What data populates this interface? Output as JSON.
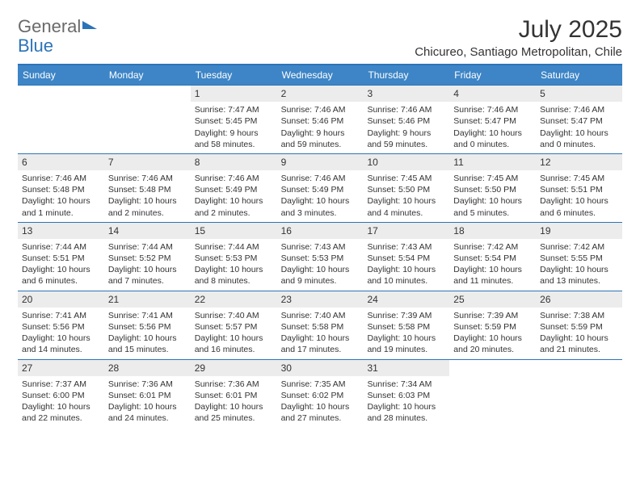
{
  "brand": {
    "part1": "General",
    "part2": "Blue"
  },
  "title": "July 2025",
  "location": "Chicureo, Santiago Metropolitan, Chile",
  "colors": {
    "header_bg": "#3d85c6",
    "rule": "#2c74b8",
    "daynum_bg": "#ececec",
    "text": "#333333"
  },
  "weekdays": [
    "Sunday",
    "Monday",
    "Tuesday",
    "Wednesday",
    "Thursday",
    "Friday",
    "Saturday"
  ],
  "weeks": [
    [
      null,
      null,
      {
        "n": "1",
        "sr": "Sunrise: 7:47 AM",
        "ss": "Sunset: 5:45 PM",
        "d1": "Daylight: 9 hours",
        "d2": "and 58 minutes."
      },
      {
        "n": "2",
        "sr": "Sunrise: 7:46 AM",
        "ss": "Sunset: 5:46 PM",
        "d1": "Daylight: 9 hours",
        "d2": "and 59 minutes."
      },
      {
        "n": "3",
        "sr": "Sunrise: 7:46 AM",
        "ss": "Sunset: 5:46 PM",
        "d1": "Daylight: 9 hours",
        "d2": "and 59 minutes."
      },
      {
        "n": "4",
        "sr": "Sunrise: 7:46 AM",
        "ss": "Sunset: 5:47 PM",
        "d1": "Daylight: 10 hours",
        "d2": "and 0 minutes."
      },
      {
        "n": "5",
        "sr": "Sunrise: 7:46 AM",
        "ss": "Sunset: 5:47 PM",
        "d1": "Daylight: 10 hours",
        "d2": "and 0 minutes."
      }
    ],
    [
      {
        "n": "6",
        "sr": "Sunrise: 7:46 AM",
        "ss": "Sunset: 5:48 PM",
        "d1": "Daylight: 10 hours",
        "d2": "and 1 minute."
      },
      {
        "n": "7",
        "sr": "Sunrise: 7:46 AM",
        "ss": "Sunset: 5:48 PM",
        "d1": "Daylight: 10 hours",
        "d2": "and 2 minutes."
      },
      {
        "n": "8",
        "sr": "Sunrise: 7:46 AM",
        "ss": "Sunset: 5:49 PM",
        "d1": "Daylight: 10 hours",
        "d2": "and 2 minutes."
      },
      {
        "n": "9",
        "sr": "Sunrise: 7:46 AM",
        "ss": "Sunset: 5:49 PM",
        "d1": "Daylight: 10 hours",
        "d2": "and 3 minutes."
      },
      {
        "n": "10",
        "sr": "Sunrise: 7:45 AM",
        "ss": "Sunset: 5:50 PM",
        "d1": "Daylight: 10 hours",
        "d2": "and 4 minutes."
      },
      {
        "n": "11",
        "sr": "Sunrise: 7:45 AM",
        "ss": "Sunset: 5:50 PM",
        "d1": "Daylight: 10 hours",
        "d2": "and 5 minutes."
      },
      {
        "n": "12",
        "sr": "Sunrise: 7:45 AM",
        "ss": "Sunset: 5:51 PM",
        "d1": "Daylight: 10 hours",
        "d2": "and 6 minutes."
      }
    ],
    [
      {
        "n": "13",
        "sr": "Sunrise: 7:44 AM",
        "ss": "Sunset: 5:51 PM",
        "d1": "Daylight: 10 hours",
        "d2": "and 6 minutes."
      },
      {
        "n": "14",
        "sr": "Sunrise: 7:44 AM",
        "ss": "Sunset: 5:52 PM",
        "d1": "Daylight: 10 hours",
        "d2": "and 7 minutes."
      },
      {
        "n": "15",
        "sr": "Sunrise: 7:44 AM",
        "ss": "Sunset: 5:53 PM",
        "d1": "Daylight: 10 hours",
        "d2": "and 8 minutes."
      },
      {
        "n": "16",
        "sr": "Sunrise: 7:43 AM",
        "ss": "Sunset: 5:53 PM",
        "d1": "Daylight: 10 hours",
        "d2": "and 9 minutes."
      },
      {
        "n": "17",
        "sr": "Sunrise: 7:43 AM",
        "ss": "Sunset: 5:54 PM",
        "d1": "Daylight: 10 hours",
        "d2": "and 10 minutes."
      },
      {
        "n": "18",
        "sr": "Sunrise: 7:42 AM",
        "ss": "Sunset: 5:54 PM",
        "d1": "Daylight: 10 hours",
        "d2": "and 11 minutes."
      },
      {
        "n": "19",
        "sr": "Sunrise: 7:42 AM",
        "ss": "Sunset: 5:55 PM",
        "d1": "Daylight: 10 hours",
        "d2": "and 13 minutes."
      }
    ],
    [
      {
        "n": "20",
        "sr": "Sunrise: 7:41 AM",
        "ss": "Sunset: 5:56 PM",
        "d1": "Daylight: 10 hours",
        "d2": "and 14 minutes."
      },
      {
        "n": "21",
        "sr": "Sunrise: 7:41 AM",
        "ss": "Sunset: 5:56 PM",
        "d1": "Daylight: 10 hours",
        "d2": "and 15 minutes."
      },
      {
        "n": "22",
        "sr": "Sunrise: 7:40 AM",
        "ss": "Sunset: 5:57 PM",
        "d1": "Daylight: 10 hours",
        "d2": "and 16 minutes."
      },
      {
        "n": "23",
        "sr": "Sunrise: 7:40 AM",
        "ss": "Sunset: 5:58 PM",
        "d1": "Daylight: 10 hours",
        "d2": "and 17 minutes."
      },
      {
        "n": "24",
        "sr": "Sunrise: 7:39 AM",
        "ss": "Sunset: 5:58 PM",
        "d1": "Daylight: 10 hours",
        "d2": "and 19 minutes."
      },
      {
        "n": "25",
        "sr": "Sunrise: 7:39 AM",
        "ss": "Sunset: 5:59 PM",
        "d1": "Daylight: 10 hours",
        "d2": "and 20 minutes."
      },
      {
        "n": "26",
        "sr": "Sunrise: 7:38 AM",
        "ss": "Sunset: 5:59 PM",
        "d1": "Daylight: 10 hours",
        "d2": "and 21 minutes."
      }
    ],
    [
      {
        "n": "27",
        "sr": "Sunrise: 7:37 AM",
        "ss": "Sunset: 6:00 PM",
        "d1": "Daylight: 10 hours",
        "d2": "and 22 minutes."
      },
      {
        "n": "28",
        "sr": "Sunrise: 7:36 AM",
        "ss": "Sunset: 6:01 PM",
        "d1": "Daylight: 10 hours",
        "d2": "and 24 minutes."
      },
      {
        "n": "29",
        "sr": "Sunrise: 7:36 AM",
        "ss": "Sunset: 6:01 PM",
        "d1": "Daylight: 10 hours",
        "d2": "and 25 minutes."
      },
      {
        "n": "30",
        "sr": "Sunrise: 7:35 AM",
        "ss": "Sunset: 6:02 PM",
        "d1": "Daylight: 10 hours",
        "d2": "and 27 minutes."
      },
      {
        "n": "31",
        "sr": "Sunrise: 7:34 AM",
        "ss": "Sunset: 6:03 PM",
        "d1": "Daylight: 10 hours",
        "d2": "and 28 minutes."
      },
      null,
      null
    ]
  ]
}
